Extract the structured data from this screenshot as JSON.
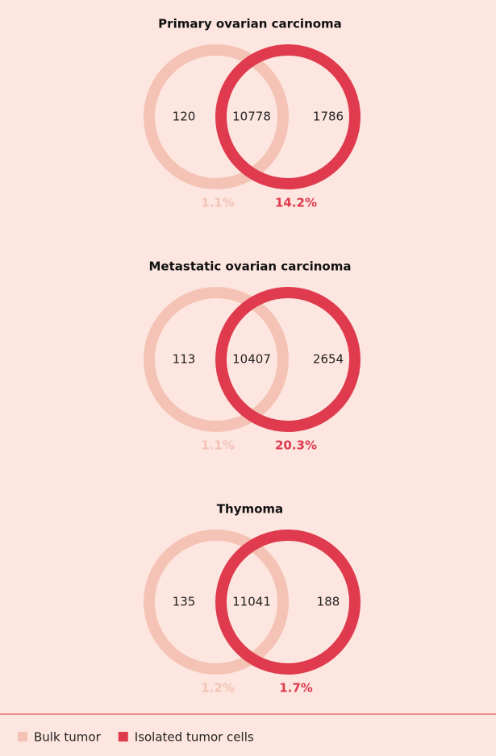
{
  "chart_data": [
    {
      "type": "venn",
      "title": "Primary ovarian carcinoma",
      "regions": [
        120,
        10778,
        1786
      ],
      "values": [
        1.1,
        14.2
      ],
      "value_labels": [
        "1.1%",
        "14.2%"
      ]
    },
    {
      "type": "venn",
      "title": "Metastatic ovarian carcinoma",
      "regions": [
        113,
        10407,
        2654
      ],
      "values": [
        1.1,
        20.3
      ],
      "value_labels": [
        "1.1%",
        "20.3%"
      ]
    },
    {
      "type": "venn",
      "title": "Thymoma",
      "regions": [
        135,
        11041,
        188
      ],
      "values": [
        1.2,
        1.7
      ],
      "value_labels": [
        "1.2%",
        "1.7%"
      ]
    }
  ],
  "legend": {
    "items": [
      {
        "name": "Bulk tumor",
        "color": "#f4c3b6"
      },
      {
        "name": "Isolated tumor cells",
        "color": "#df3a4e"
      }
    ]
  }
}
